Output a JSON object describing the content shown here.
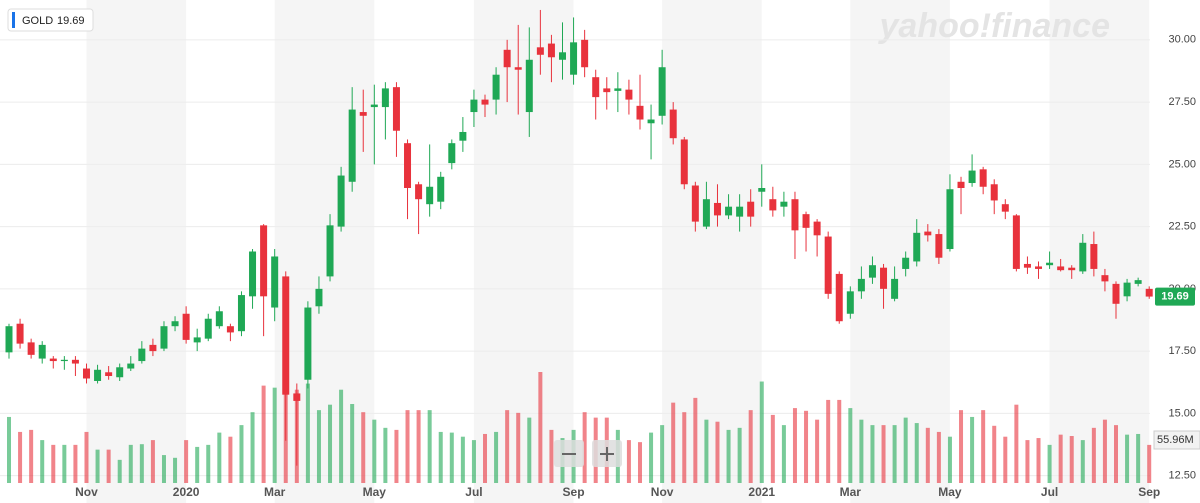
{
  "chart_data": {
    "type": "candlestick",
    "watermark": "yahoo!finance",
    "up_color": "#1fa855",
    "down_color": "#e8323c",
    "grid": true,
    "ylim": [
      11.4,
      31.6
    ],
    "yticks": [
      {
        "value": 12.5,
        "label": "12.50"
      },
      {
        "value": 15,
        "label": "15.00"
      },
      {
        "value": 17.5,
        "label": "17.50"
      },
      {
        "value": 20,
        "label": "20.00"
      },
      {
        "value": 22.5,
        "label": "22.50"
      },
      {
        "value": 25,
        "label": "25.00"
      },
      {
        "value": 27.5,
        "label": "27.50"
      },
      {
        "value": 30,
        "label": "30.00"
      }
    ],
    "categories": [
      null,
      null,
      null,
      null,
      null,
      null,
      null,
      "Nov",
      null,
      null,
      null,
      null,
      null,
      null,
      null,
      null,
      "2020",
      null,
      null,
      null,
      null,
      null,
      null,
      null,
      "Mar",
      null,
      null,
      null,
      null,
      null,
      null,
      null,
      null,
      "May",
      null,
      null,
      null,
      null,
      null,
      null,
      null,
      null,
      "Jul",
      null,
      null,
      null,
      null,
      null,
      null,
      null,
      null,
      "Sep",
      null,
      null,
      null,
      null,
      null,
      null,
      null,
      "Nov",
      null,
      null,
      null,
      null,
      null,
      null,
      null,
      null,
      "2021",
      null,
      null,
      null,
      null,
      null,
      null,
      null,
      "Mar",
      null,
      null,
      null,
      null,
      null,
      null,
      null,
      null,
      "May",
      null,
      null,
      null,
      null,
      null,
      null,
      null,
      null,
      "Jul",
      null,
      null,
      null,
      null,
      null,
      null,
      null,
      null,
      "Sep"
    ],
    "series": [
      {
        "name": "GOLD",
        "open": [
          17.45,
          18.6,
          17.85,
          17.2,
          17.2,
          17.1,
          17.15,
          16.8,
          16.3,
          16.65,
          16.45,
          16.8,
          17.1,
          17.75,
          17.6,
          18.5,
          19.0,
          17.85,
          18.0,
          18.5,
          18.5,
          18.3,
          19.7,
          22.55,
          19.25,
          20.5,
          15.8,
          16.35,
          19.3,
          20.5,
          22.5,
          24.3,
          27.1,
          27.3,
          27.3,
          28.1,
          25.85,
          24.2,
          23.4,
          23.5,
          25.05,
          25.95,
          27.1,
          27.6,
          27.6,
          29.6,
          28.9,
          27.1,
          29.7,
          29.85,
          29.2,
          28.6,
          30.0,
          28.5,
          28.05,
          27.95,
          28.0,
          27.35,
          26.65,
          26.95,
          27.2,
          26.0,
          24.15,
          22.5,
          23.45,
          22.95,
          22.9,
          23.5,
          23.9,
          23.6,
          23.3,
          23.6,
          23.0,
          22.7,
          22.1,
          20.6,
          19.0,
          19.9,
          20.45,
          20.85,
          19.6,
          20.8,
          21.1,
          22.3,
          22.2,
          21.6,
          24.3,
          24.25,
          24.8,
          24.2,
          23.4,
          22.95,
          21.0,
          20.9,
          20.95,
          20.9,
          20.85,
          20.7,
          21.8,
          20.55,
          20.2,
          19.7,
          20.2,
          20.0
        ],
        "high": [
          18.6,
          18.8,
          18.0,
          17.9,
          17.3,
          17.3,
          17.3,
          17.0,
          16.95,
          16.9,
          17.0,
          17.3,
          17.9,
          18.0,
          18.7,
          18.9,
          19.3,
          18.4,
          19.0,
          19.3,
          18.6,
          19.9,
          21.6,
          22.6,
          21.6,
          20.7,
          16.2,
          19.5,
          20.5,
          23.0,
          24.9,
          28.1,
          28.0,
          28.2,
          28.3,
          28.3,
          26.0,
          24.3,
          25.8,
          24.7,
          26.0,
          26.9,
          28.0,
          27.8,
          28.9,
          30.0,
          30.6,
          30.5,
          31.2,
          30.2,
          30.7,
          30.9,
          30.4,
          28.8,
          28.5,
          28.7,
          28.4,
          28.6,
          27.4,
          29.6,
          27.5,
          26.1,
          24.3,
          24.3,
          24.2,
          23.8,
          23.8,
          24.0,
          25.0,
          24.1,
          23.9,
          23.9,
          23.1,
          22.8,
          22.3,
          20.7,
          20.1,
          20.9,
          21.3,
          21.0,
          20.9,
          21.5,
          22.8,
          22.6,
          22.4,
          24.6,
          24.5,
          25.4,
          24.9,
          24.4,
          23.6,
          23.0,
          21.3,
          21.1,
          21.5,
          21.2,
          20.95,
          22.2,
          22.3,
          20.8,
          20.3,
          20.4,
          20.45,
          20.1
        ],
        "low": [
          17.2,
          17.6,
          17.2,
          17.0,
          16.8,
          16.75,
          16.5,
          16.2,
          16.2,
          16.35,
          16.3,
          16.7,
          17.0,
          17.3,
          17.5,
          18.3,
          17.8,
          17.5,
          17.9,
          18.4,
          17.9,
          18.1,
          19.2,
          18.1,
          18.7,
          13.9,
          12.9,
          16.0,
          19.0,
          20.3,
          22.3,
          23.9,
          25.5,
          25.0,
          26.0,
          25.3,
          22.8,
          22.2,
          22.9,
          23.2,
          24.8,
          25.5,
          26.5,
          26.9,
          27.0,
          27.5,
          27.0,
          26.1,
          28.6,
          28.3,
          28.4,
          28.2,
          28.5,
          26.8,
          27.2,
          27.1,
          27.0,
          26.4,
          25.2,
          26.6,
          25.8,
          24.0,
          22.3,
          22.4,
          22.5,
          22.8,
          22.3,
          22.5,
          23.3,
          22.9,
          22.9,
          21.2,
          21.5,
          21.3,
          19.6,
          18.6,
          18.8,
          19.6,
          20.2,
          19.2,
          19.5,
          20.5,
          20.9,
          21.9,
          21.0,
          21.5,
          23.0,
          24.1,
          23.8,
          23.0,
          22.8,
          20.7,
          20.6,
          20.4,
          20.8,
          20.7,
          20.4,
          20.6,
          20.5,
          19.9,
          18.8,
          19.5,
          20.1,
          19.6
        ],
        "close": [
          18.5,
          17.8,
          17.35,
          17.75,
          17.1,
          17.15,
          17.0,
          16.4,
          16.75,
          16.5,
          16.85,
          17.0,
          17.6,
          17.5,
          18.5,
          18.7,
          17.95,
          18.05,
          18.8,
          19.1,
          18.25,
          19.75,
          21.5,
          19.7,
          21.3,
          15.75,
          15.5,
          19.25,
          20.0,
          22.55,
          24.55,
          27.2,
          26.95,
          27.4,
          28.05,
          26.35,
          24.05,
          23.6,
          24.1,
          24.5,
          25.85,
          26.3,
          27.6,
          27.4,
          28.6,
          28.9,
          28.8,
          29.2,
          29.4,
          29.3,
          29.5,
          29.9,
          28.9,
          27.7,
          27.9,
          28.05,
          27.6,
          26.8,
          26.8,
          28.9,
          26.05,
          24.2,
          22.7,
          23.6,
          22.95,
          23.3,
          23.3,
          22.9,
          24.05,
          23.15,
          23.5,
          22.35,
          22.45,
          22.15,
          19.8,
          18.7,
          19.9,
          20.4,
          20.95,
          20.0,
          20.4,
          21.25,
          22.25,
          22.15,
          21.25,
          24.0,
          24.05,
          24.75,
          24.1,
          23.55,
          23.1,
          20.8,
          20.85,
          20.8,
          21.05,
          20.75,
          20.75,
          21.85,
          20.8,
          20.3,
          19.4,
          20.25,
          20.35,
          19.69
        ]
      }
    ],
    "volume": {
      "values": [
        97,
        75,
        78,
        63,
        56,
        56,
        56,
        75,
        49,
        49,
        34,
        56,
        57,
        63,
        41,
        37,
        63,
        53,
        56,
        74,
        68,
        85,
        104,
        143,
        140,
        141,
        137,
        146,
        107,
        115,
        137,
        116,
        104,
        93,
        81,
        78,
        107,
        107,
        107,
        75,
        74,
        68,
        63,
        72,
        75,
        107,
        103,
        96,
        163,
        78,
        66,
        78,
        104,
        96,
        96,
        78,
        63,
        60,
        74,
        85,
        118,
        104,
        125,
        93,
        90,
        78,
        81,
        107,
        149,
        100,
        85,
        110,
        106,
        93,
        122,
        122,
        110,
        93,
        85,
        85,
        85,
        96,
        88,
        81,
        75,
        68,
        107,
        97,
        107,
        84,
        68,
        115,
        63,
        66,
        56,
        71,
        69,
        63,
        81,
        93,
        85,
        71,
        72,
        55.96
      ],
      "value_labels": [
        null,
        null,
        null,
        null,
        null,
        null,
        null,
        null,
        null,
        null,
        null,
        null,
        null,
        null,
        null,
        null,
        null,
        null,
        null,
        null,
        null,
        null,
        null,
        null,
        null,
        null,
        null,
        null,
        null,
        null,
        null,
        null,
        null,
        null,
        null,
        null,
        null,
        null,
        null,
        null,
        null,
        null,
        null,
        null,
        null,
        null,
        null,
        null,
        null,
        null,
        null,
        null,
        null,
        null,
        null,
        null,
        null,
        null,
        null,
        null,
        null,
        null,
        null,
        null,
        null,
        null,
        null,
        null,
        null,
        null,
        null,
        null,
        null,
        null,
        null,
        null,
        null,
        null,
        null,
        null,
        null,
        null,
        null,
        null,
        null,
        null,
        null,
        null,
        null,
        null,
        null,
        null,
        null,
        null,
        null,
        null,
        null,
        null,
        null,
        null,
        null,
        null,
        null,
        "55.96M"
      ]
    }
  }
}
